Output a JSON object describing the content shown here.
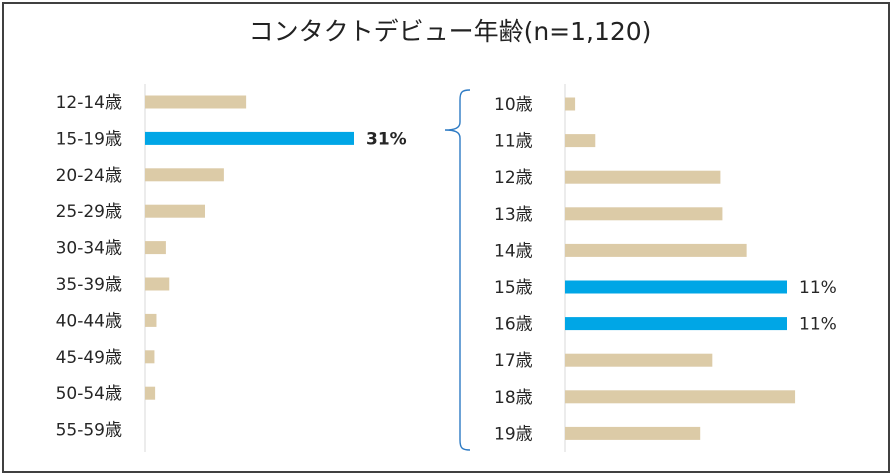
{
  "chart_data": [
    {
      "type": "bar",
      "orientation": "horizontal",
      "title": "コンタクトデビュー年齢(n=1,120)",
      "categories": [
        "12-14歳",
        "15-19歳",
        "20-24歳",
        "25-29歳",
        "30-34歳",
        "35-39歳",
        "40-44歳",
        "45-49歳",
        "50-54歳",
        "55-59歳"
      ],
      "values": [
        15,
        31,
        11.7,
        8.9,
        3.1,
        3.6,
        1.7,
        1.4,
        1.5,
        0
      ],
      "data_labels": [
        "",
        "31%",
        "",
        "",
        "",
        "",
        "",
        "",
        "",
        ""
      ],
      "highlight_index": [
        1
      ],
      "xlim": [
        0,
        31
      ]
    },
    {
      "type": "bar",
      "orientation": "horizontal",
      "categories": [
        "10歳",
        "11歳",
        "12歳",
        "13歳",
        "14歳",
        "15歳",
        "16歳",
        "17歳",
        "18歳",
        "19歳"
      ],
      "values": [
        0.5,
        1.5,
        7.7,
        7.8,
        9.0,
        11,
        11,
        7.3,
        11.4,
        6.7
      ],
      "data_labels": [
        "",
        "",
        "",
        "",
        "",
        "11%",
        "11%",
        "",
        "",
        ""
      ],
      "highlight_index": [
        5,
        6
      ],
      "xlim": [
        0,
        11
      ]
    }
  ],
  "colors": {
    "normal_bar": "#dccba7",
    "highlight_bar": "#00a6e6",
    "brace": "#2e7bc4"
  }
}
